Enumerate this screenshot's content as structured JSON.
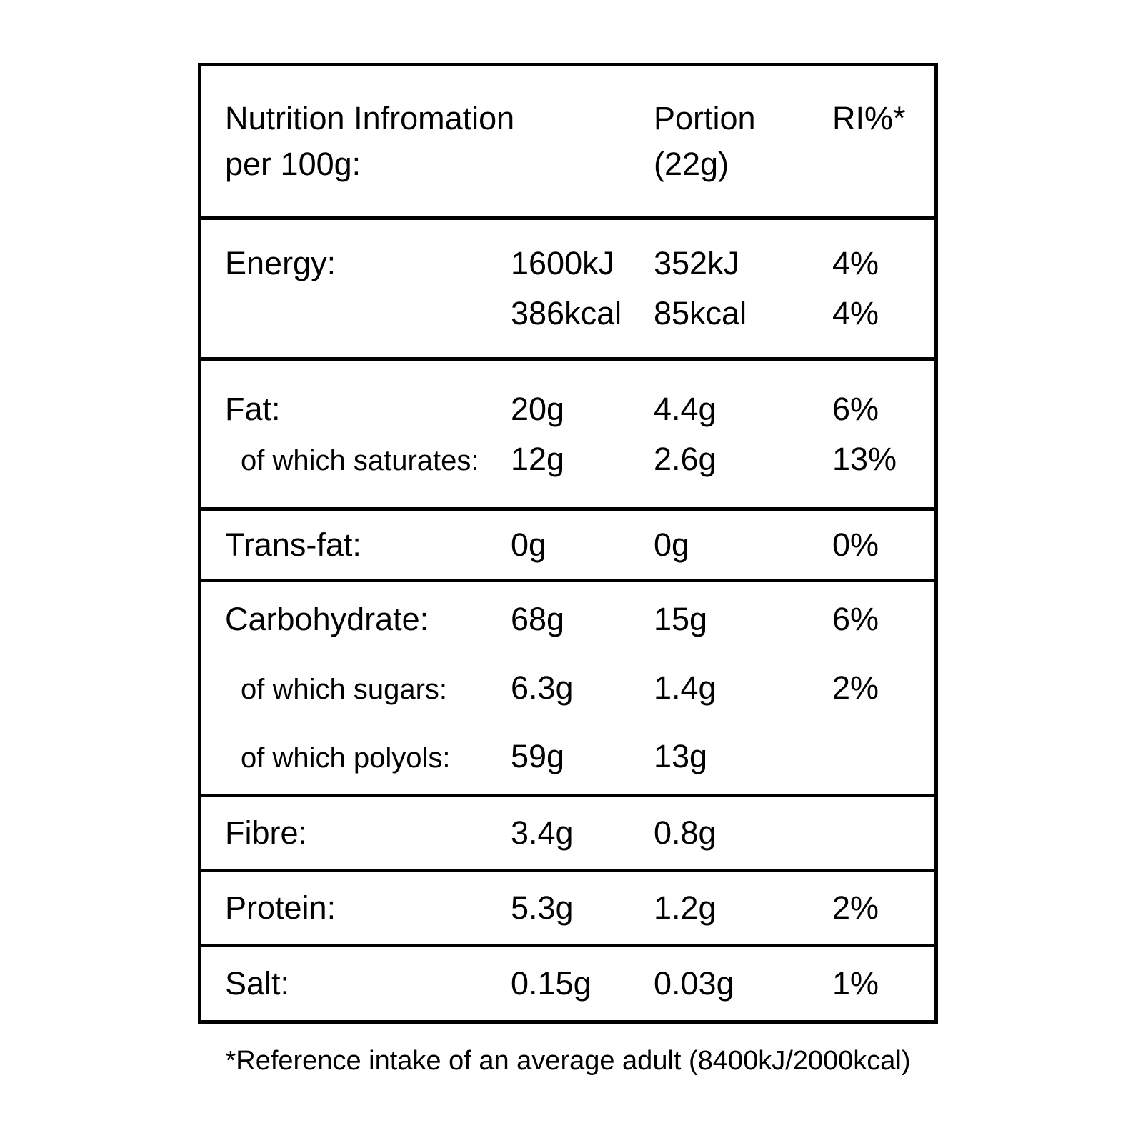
{
  "header": {
    "col_main_line1": "Nutrition Infromation",
    "col_main_line2": "per 100g:",
    "col_portion_line1": "Portion",
    "col_portion_line2": "(22g)",
    "col_ri": "RI%*"
  },
  "sections": [
    {
      "key": "energy",
      "lines": [
        {
          "label": "Energy:",
          "per100": "1600kJ",
          "portion": "352kJ",
          "ri": "4%"
        },
        {
          "label": "",
          "per100": "386kcal",
          "portion": "85kcal",
          "ri": "4%"
        }
      ]
    },
    {
      "key": "fat",
      "lines": [
        {
          "label": "Fat:",
          "per100": "20g",
          "portion": "4.4g",
          "ri": "6%"
        },
        {
          "label": "of which saturates:",
          "per100": "12g",
          "portion": "2.6g",
          "ri": "13%"
        }
      ]
    },
    {
      "key": "trans_fat",
      "lines": [
        {
          "label": "Trans-fat:",
          "per100": "0g",
          "portion": "0g",
          "ri": "0%"
        }
      ]
    },
    {
      "key": "carbohydrate",
      "lines": [
        {
          "label": "Carbohydrate:",
          "per100": "68g",
          "portion": "15g",
          "ri": "6%"
        },
        {
          "label": "of which sugars:",
          "per100": "6.3g",
          "portion": "1.4g",
          "ri": "2%"
        },
        {
          "label": "of which polyols:",
          "per100": "59g",
          "portion": "13g",
          "ri": ""
        }
      ]
    },
    {
      "key": "fibre",
      "lines": [
        {
          "label": "Fibre:",
          "per100": "3.4g",
          "portion": "0.8g",
          "ri": ""
        }
      ]
    },
    {
      "key": "protein",
      "lines": [
        {
          "label": "Protein:",
          "per100": "5.3g",
          "portion": "1.2g",
          "ri": "2%"
        }
      ]
    },
    {
      "key": "salt",
      "lines": [
        {
          "label": "Salt:",
          "per100": "0.15g",
          "portion": "0.03g",
          "ri": "1%"
        }
      ]
    }
  ],
  "footnote": "*Reference intake of an average adult (8400kJ/2000kcal)",
  "colors": {
    "background": "#ffffff",
    "border": "#000000",
    "text": "#000000"
  }
}
